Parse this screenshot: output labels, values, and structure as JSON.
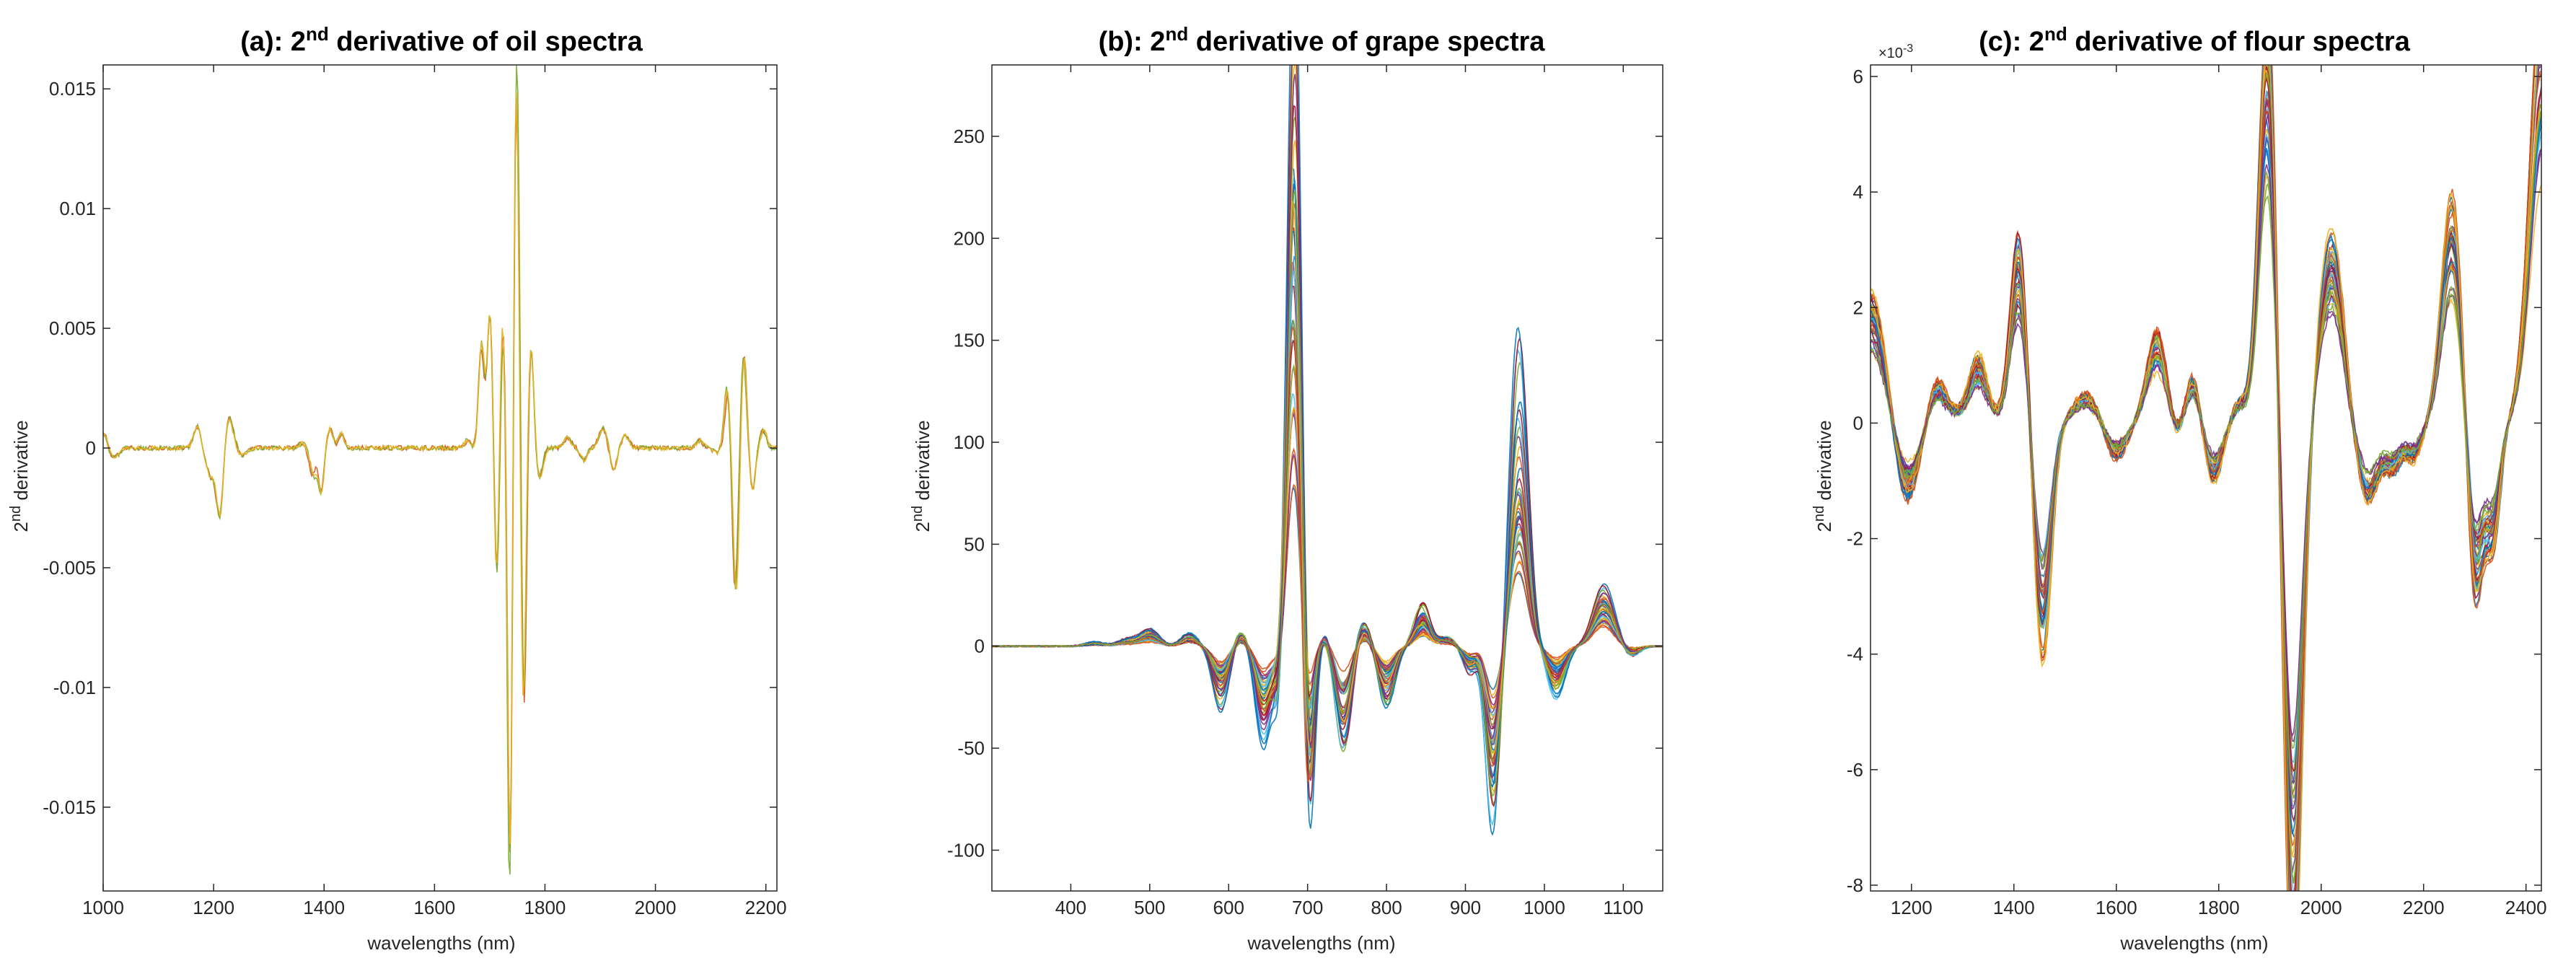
{
  "chart_data": [
    {
      "type": "line",
      "title_prefix": "(a): 2",
      "title_sup": "nd",
      "title_suffix": " derivative of oil spectra",
      "xlabel": "wavelengths (nm)",
      "ylabel_prefix": "2",
      "ylabel_sup": "nd",
      "ylabel_suffix": " derivative",
      "xlim": [
        1000,
        2220
      ],
      "ylim": [
        -0.0185,
        0.016
      ],
      "xticks": [
        1000,
        1200,
        1400,
        1600,
        1800,
        2000,
        2200
      ],
      "yticks": [
        -0.015,
        -0.01,
        -0.005,
        0,
        0.005,
        0.01,
        0.015
      ],
      "ytick_labels": [
        "-0.015",
        "-0.01",
        "-0.005",
        "0",
        "0.005",
        "0.01",
        "0.015"
      ],
      "y_exponent": "",
      "grid": false,
      "n_curves": 3,
      "colors": [
        "#D95319",
        "#77AC30",
        "#EDB120"
      ],
      "spread": 0.05,
      "baseline_noise": 0.0001,
      "features": [
        [
          1000,
          0.0006,
          6
        ],
        [
          1020,
          -0.0004,
          8
        ],
        [
          1170,
          0.0009,
          7
        ],
        [
          1195,
          -0.0012,
          9
        ],
        [
          1212,
          -0.0027,
          6
        ],
        [
          1228,
          0.0013,
          8
        ],
        [
          1250,
          -0.0003,
          9
        ],
        [
          1360,
          0.0002,
          6
        ],
        [
          1380,
          -0.0011,
          6
        ],
        [
          1395,
          -0.0018,
          5
        ],
        [
          1410,
          0.0008,
          6
        ],
        [
          1432,
          0.0006,
          5
        ],
        [
          1660,
          0.0003,
          6
        ],
        [
          1685,
          0.0042,
          5
        ],
        [
          1700,
          0.0056,
          5
        ],
        [
          1712,
          -0.0055,
          4.5
        ],
        [
          1724,
          0.0052,
          4.5
        ],
        [
          1736,
          -0.0185,
          4.5
        ],
        [
          1748,
          0.016,
          5
        ],
        [
          1762,
          -0.0108,
          4.5
        ],
        [
          1775,
          0.0042,
          5
        ],
        [
          1790,
          -0.0012,
          6
        ],
        [
          1840,
          0.0004,
          7
        ],
        [
          1870,
          -0.0005,
          6
        ],
        [
          1905,
          0.0008,
          7
        ],
        [
          1925,
          -0.0009,
          6
        ],
        [
          1945,
          0.0005,
          7
        ],
        [
          2080,
          0.0003,
          6
        ],
        [
          2110,
          -0.0002,
          5
        ],
        [
          2130,
          0.0025,
          5
        ],
        [
          2145,
          -0.0059,
          5
        ],
        [
          2160,
          0.0038,
          5
        ],
        [
          2175,
          -0.0018,
          5
        ],
        [
          2195,
          0.0007,
          6
        ]
      ]
    },
    {
      "type": "line",
      "title_prefix": "(b): 2",
      "title_sup": "nd",
      "title_suffix": " derivative of grape spectra",
      "xlabel": "wavelengths (nm)",
      "ylabel_prefix": "2",
      "ylabel_sup": "nd",
      "ylabel_suffix": " derivative",
      "xlim": [
        300,
        1150
      ],
      "ylim": [
        -120,
        285
      ],
      "xticks": [
        400,
        500,
        600,
        700,
        800,
        900,
        1000,
        1100
      ],
      "yticks": [
        -100,
        -50,
        0,
        50,
        100,
        150,
        200,
        250
      ],
      "ytick_labels": [
        "-100",
        "-50",
        "0",
        "50",
        "100",
        "150",
        "200",
        "250"
      ],
      "y_exponent": "",
      "grid": false,
      "n_curves": 40,
      "colors": [
        "#0072BD",
        "#D95319",
        "#EDB120",
        "#7E2F8E",
        "#77AC30",
        "#4DBEEE",
        "#A2142F"
      ],
      "spread": 0.55,
      "baseline_noise": 0.3,
      "features": [
        [
          430,
          1.2,
          12
        ],
        [
          470,
          2,
          12
        ],
        [
          500,
          5,
          12
        ],
        [
          550,
          4,
          10
        ],
        [
          590,
          -18,
          10
        ],
        [
          615,
          5,
          8
        ],
        [
          645,
          -30,
          10
        ],
        [
          665,
          -20,
          6
        ],
        [
          683,
          200,
          9
        ],
        [
          700,
          -70,
          7
        ],
        [
          725,
          5,
          10
        ],
        [
          745,
          -35,
          10
        ],
        [
          770,
          8,
          9
        ],
        [
          800,
          -18,
          10
        ],
        [
          845,
          13,
          9
        ],
        [
          875,
          3,
          10
        ],
        [
          905,
          -8,
          8
        ],
        [
          935,
          -55,
          9
        ],
        [
          968,
          85,
          11
        ],
        [
          1015,
          -15,
          11
        ],
        [
          1075,
          20,
          13
        ],
        [
          1110,
          -3,
          10
        ]
      ]
    },
    {
      "type": "line",
      "title_prefix": "(c): 2",
      "title_sup": "nd",
      "title_suffix": " derivative of flour spectra",
      "xlabel": "wavelengths (nm)",
      "ylabel_prefix": "2",
      "ylabel_sup": "nd",
      "ylabel_suffix": " derivative",
      "xlim": [
        1120,
        2430
      ],
      "ylim": [
        -8.1,
        6.2
      ],
      "xticks": [
        1200,
        1400,
        1600,
        1800,
        2000,
        2200,
        2400
      ],
      "yticks": [
        -8,
        -6,
        -4,
        -2,
        0,
        2,
        4,
        6
      ],
      "ytick_labels": [
        "-8",
        "-6",
        "-4",
        "-2",
        "0",
        "2",
        "4",
        "6"
      ],
      "y_exponent": "×10",
      "y_exponent_sup": "-3",
      "grid": false,
      "n_curves": 40,
      "colors": [
        "#0072BD",
        "#D95319",
        "#EDB120",
        "#7E2F8E",
        "#77AC30",
        "#4DBEEE",
        "#A2142F"
      ],
      "spread": 0.25,
      "baseline_noise": 0.05,
      "features": [
        [
          1120,
          1.8,
          30
        ],
        [
          1190,
          -1.1,
          24
        ],
        [
          1250,
          0.6,
          18
        ],
        [
          1290,
          0.1,
          15
        ],
        [
          1330,
          0.9,
          18
        ],
        [
          1370,
          0.0,
          14
        ],
        [
          1410,
          2.6,
          17
        ],
        [
          1455,
          -3.2,
          17
        ],
        [
          1540,
          0.4,
          24
        ],
        [
          1600,
          -0.5,
          20
        ],
        [
          1680,
          1.3,
          20
        ],
        [
          1715,
          -0.3,
          14
        ],
        [
          1750,
          0.7,
          14
        ],
        [
          1790,
          -0.8,
          18
        ],
        [
          1840,
          0.3,
          16
        ],
        [
          1895,
          5.8,
          17
        ],
        [
          1945,
          -7.6,
          18
        ],
        [
          2020,
          2.6,
          24
        ],
        [
          2090,
          -1.2,
          22
        ],
        [
          2140,
          -0.6,
          16
        ],
        [
          2180,
          -0.5,
          16
        ],
        [
          2255,
          3.1,
          20
        ],
        [
          2300,
          -2.5,
          15
        ],
        [
          2335,
          -1.6,
          14
        ],
        [
          2390,
          0.2,
          15
        ],
        [
          2430,
          6.0,
          22
        ]
      ]
    }
  ]
}
